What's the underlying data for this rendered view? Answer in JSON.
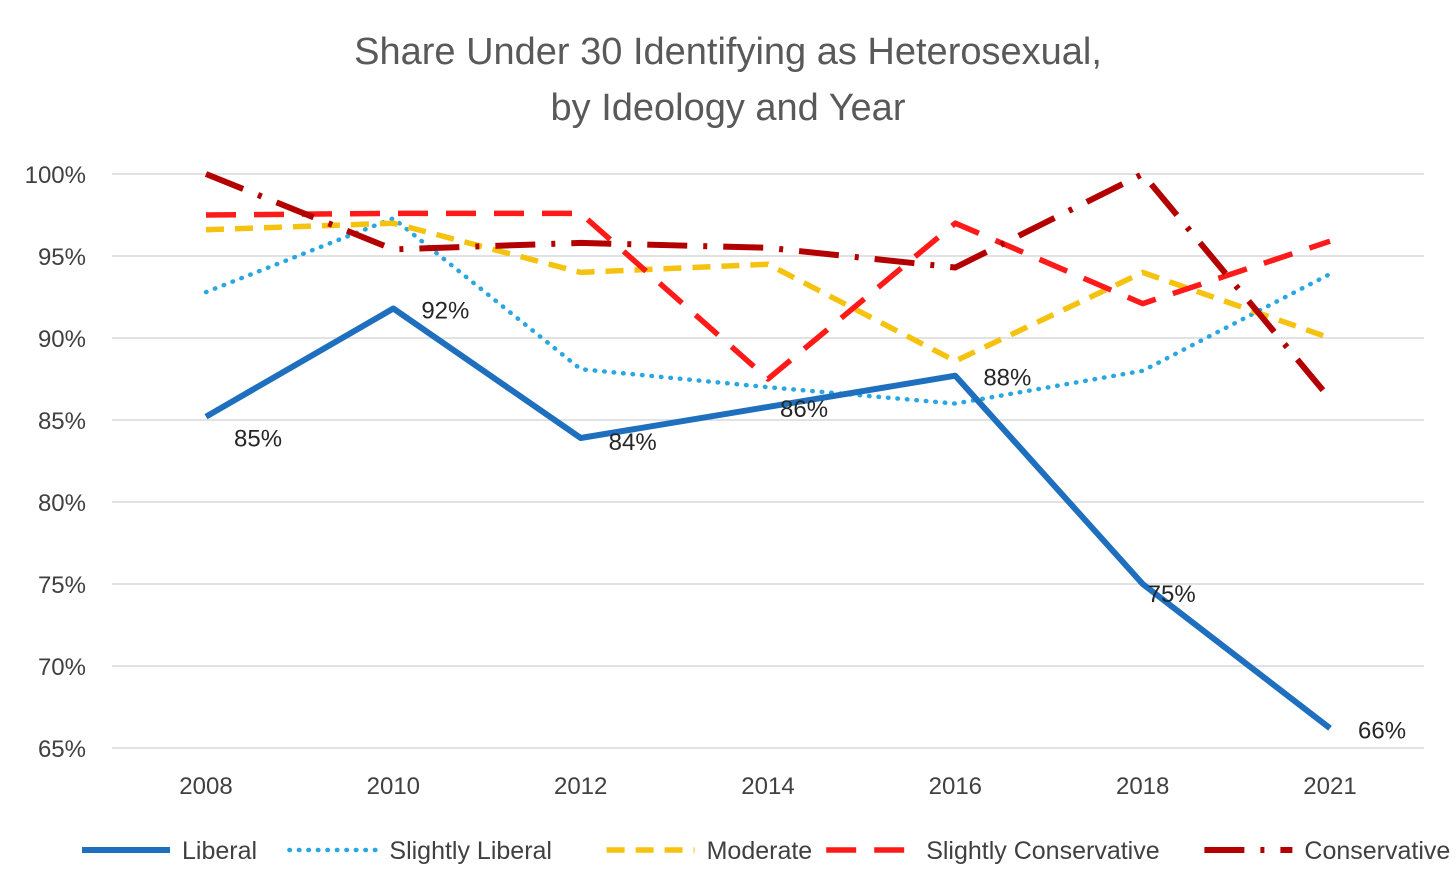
{
  "chart_data": {
    "type": "line",
    "title": [
      "Share Under 30 Identifying as Heterosexual,",
      "by Ideology and Year"
    ],
    "categories": [
      "2008",
      "2010",
      "2012",
      "2014",
      "2016",
      "2018",
      "2021"
    ],
    "y_ticks": [
      "65%",
      "70%",
      "75%",
      "80%",
      "85%",
      "90%",
      "95%",
      "100%"
    ],
    "ylim": [
      65,
      100
    ],
    "grid": true,
    "legend_position": "bottom",
    "series": [
      {
        "name": "Liberal",
        "color": "#1f6fbf",
        "dash": "solid",
        "values": [
          85.2,
          91.8,
          83.9,
          85.8,
          87.7,
          75.0,
          66.2
        ],
        "data_labels": [
          "85%",
          "92%",
          "84%",
          "86%",
          "88%",
          "75%",
          "66%"
        ]
      },
      {
        "name": "Slightly Liberal",
        "color": "#2aa7e0",
        "dash": "dot",
        "values": [
          92.8,
          97.3,
          88.1,
          87.0,
          86.0,
          88.0,
          93.9
        ]
      },
      {
        "name": "Moderate",
        "color": "#f5c30f",
        "dash": "dash",
        "values": [
          96.6,
          97.0,
          94.0,
          94.5,
          88.6,
          94.0,
          90.0
        ]
      },
      {
        "name": "Slightly Conservative",
        "color": "#ff1a1a",
        "dash": "longdash",
        "values": [
          97.5,
          97.6,
          97.6,
          87.5,
          97.0,
          92.1,
          95.9
        ]
      },
      {
        "name": "Conservative",
        "color": "#b30000",
        "dash": "dashdot",
        "values": [
          100.0,
          95.4,
          95.8,
          95.5,
          94.3,
          100.0,
          86.3
        ]
      }
    ]
  }
}
